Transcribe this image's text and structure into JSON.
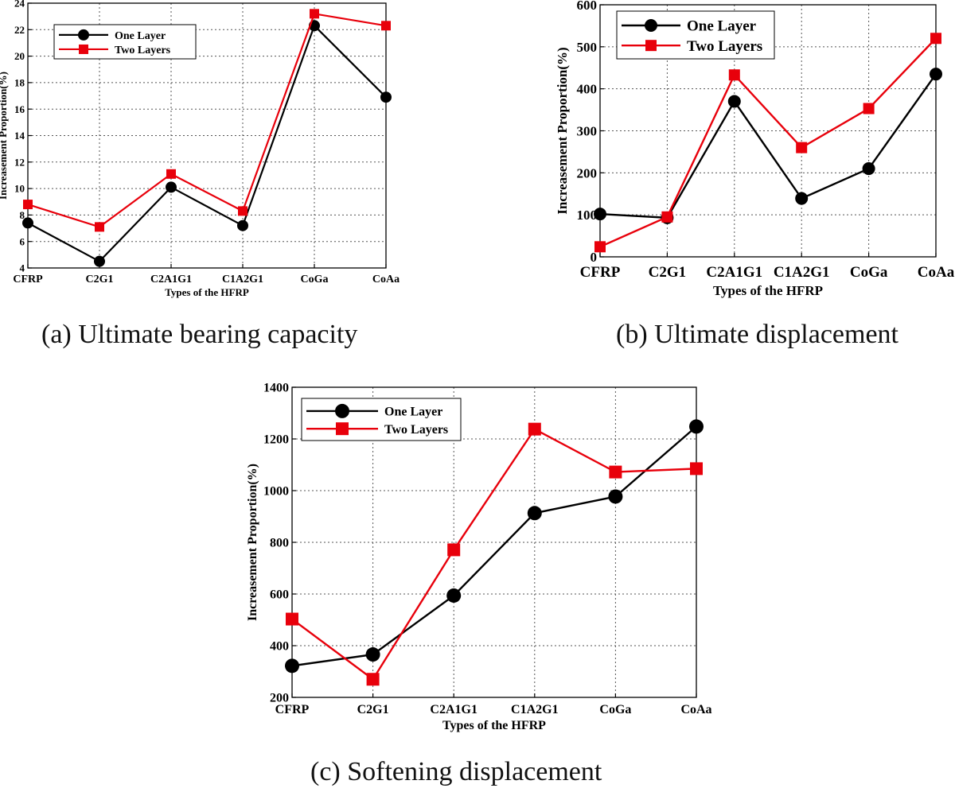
{
  "colors": {
    "one_layer": "#000000",
    "two_layers": "#e8000b",
    "grid": "#555555",
    "axis": "#000000"
  },
  "captions": {
    "a": "(a) Ultimate bearing capacity",
    "b": "(b) Ultimate displacement",
    "c": "(c) Softening displacement"
  },
  "chart_data": [
    {
      "id": "a",
      "type": "line",
      "xlabel": "Types of the HFRP",
      "ylabel": "Increasement Proportion(%)",
      "categories": [
        "CFRP",
        "C2G1",
        "C2A1G1",
        "C1A2G1",
        "CoGa",
        "CoAa"
      ],
      "ylim": [
        4,
        24
      ],
      "yticks": [
        4,
        6,
        8,
        10,
        12,
        14,
        16,
        18,
        20,
        22,
        24
      ],
      "grid": true,
      "legend_position": "top-left",
      "series": [
        {
          "name": "One Layer",
          "marker": "circle",
          "values": [
            7.4,
            4.5,
            10.1,
            7.2,
            22.3,
            16.9
          ]
        },
        {
          "name": "Two Layers",
          "marker": "square",
          "values": [
            8.8,
            7.1,
            11.1,
            8.3,
            23.2,
            22.3
          ]
        }
      ]
    },
    {
      "id": "b",
      "type": "line",
      "xlabel": "Types of the HFRP",
      "ylabel": "Increasement Proportion(%)",
      "categories": [
        "CFRP",
        "C2G1",
        "C2A1G1",
        "C1A2G1",
        "CoGa",
        "CoAa"
      ],
      "ylim": [
        0,
        600
      ],
      "yticks": [
        0,
        100,
        200,
        300,
        400,
        500,
        600
      ],
      "grid": true,
      "legend_position": "top-left",
      "series": [
        {
          "name": "One Layer",
          "marker": "circle",
          "values": [
            102,
            93,
            370,
            139,
            210,
            435
          ]
        },
        {
          "name": "Two Layers",
          "marker": "square",
          "values": [
            24,
            95,
            433,
            260,
            353,
            520
          ]
        }
      ]
    },
    {
      "id": "c",
      "type": "line",
      "xlabel": "Types of the HFRP",
      "ylabel": "Increasement Proportion(%)",
      "categories": [
        "CFRP",
        "C2G1",
        "C2A1G1",
        "C1A2G1",
        "CoGa",
        "CoAa"
      ],
      "ylim": [
        200,
        1400
      ],
      "yticks": [
        200,
        400,
        600,
        800,
        1000,
        1200,
        1400
      ],
      "grid": true,
      "legend_position": "top-left",
      "series": [
        {
          "name": "One Layer",
          "marker": "circle",
          "values": [
            322,
            366,
            594,
            913,
            977,
            1248
          ]
        },
        {
          "name": "Two Layers",
          "marker": "square",
          "values": [
            503,
            270,
            771,
            1238,
            1072,
            1085
          ]
        }
      ]
    }
  ]
}
